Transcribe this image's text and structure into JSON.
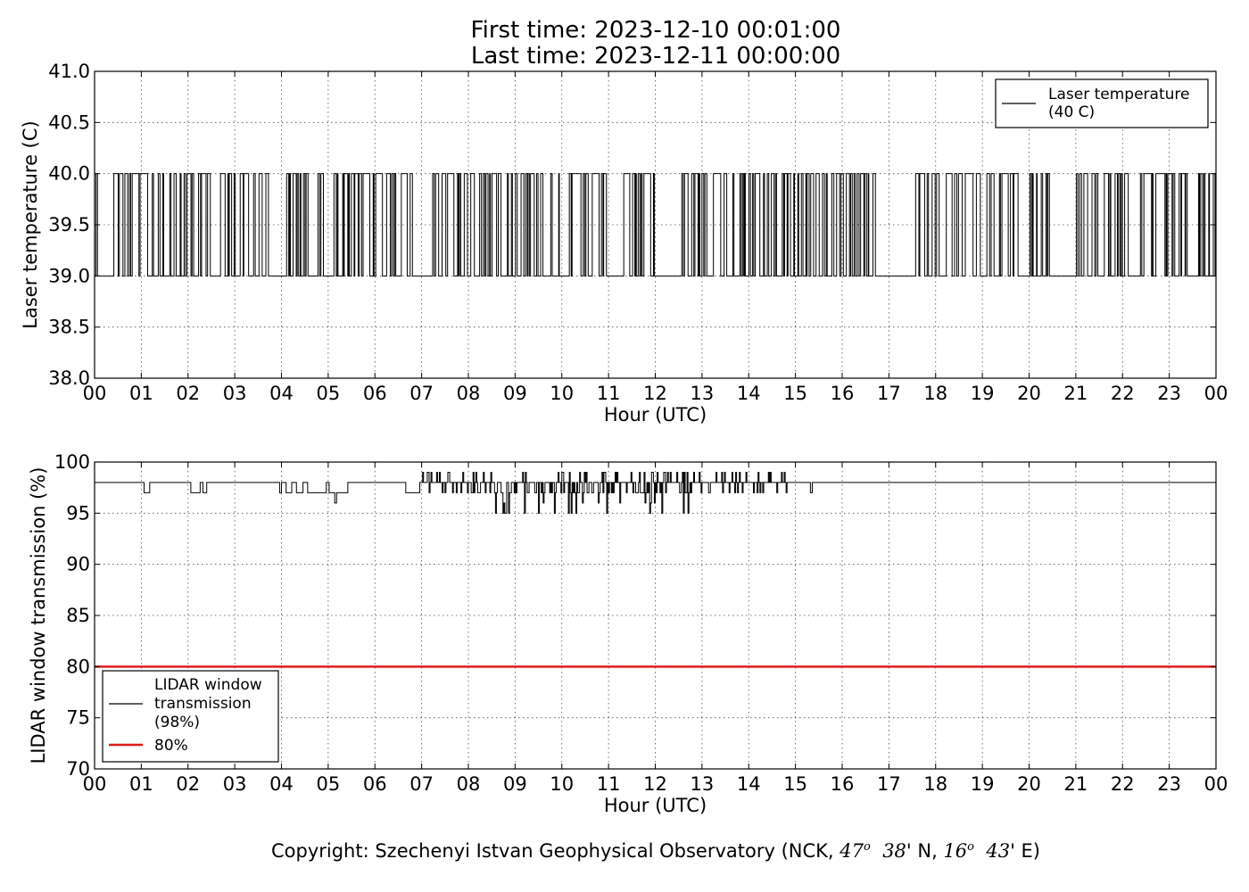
{
  "header": {
    "title_line1": "First time: 2023-12-10 00:01:00",
    "title_line2": "Last time: 2023-12-11 00:00:00"
  },
  "footer": {
    "copyright_prefix": "Copyright: Szechenyi Istvan Geophysical Observatory (NCK, ",
    "lat_deg": "47",
    "lat_deg_sup": "o",
    "lat_min": "38",
    "lat_suffix": "' N, ",
    "lon_deg": "16",
    "lon_deg_sup": "o",
    "lon_min": "43",
    "lon_suffix": "' E)"
  },
  "chart_data": [
    {
      "type": "line",
      "xlabel": "Hour (UTC)",
      "ylabel": "Laser temperature (C)",
      "xlim": [
        0,
        24
      ],
      "ylim": [
        38.0,
        41.0
      ],
      "xticks": [
        "00",
        "01",
        "02",
        "03",
        "04",
        "05",
        "06",
        "07",
        "08",
        "09",
        "10",
        "11",
        "12",
        "13",
        "14",
        "15",
        "16",
        "17",
        "18",
        "19",
        "20",
        "21",
        "22",
        "23",
        "00"
      ],
      "yticks": [
        "38.0",
        "38.5",
        "39.0",
        "39.5",
        "40.0",
        "40.5",
        "41.0"
      ],
      "grid": true,
      "legend_position": "top-right",
      "series": [
        {
          "name": "Laser temperature\n(40 C)",
          "color": "#000000",
          "values_note_levels": [
            39.0,
            40.0
          ],
          "active_spans_hours": [
            [
              0.0,
              0.12
            ],
            [
              0.35,
              1.55
            ],
            [
              1.6,
              2.45
            ],
            [
              2.65,
              3.7
            ],
            [
              3.95,
              4.0
            ],
            [
              4.1,
              4.55
            ],
            [
              4.75,
              6.9
            ],
            [
              7.2,
              11.0
            ],
            [
              11.3,
              12.05
            ],
            [
              12.5,
              13.5
            ],
            [
              13.65,
              15.5
            ],
            [
              15.55,
              16.65
            ],
            [
              16.65,
              16.8
            ],
            [
              17.55,
              18.1
            ],
            [
              18.2,
              18.95
            ],
            [
              19.05,
              19.75
            ],
            [
              20.0,
              20.5
            ],
            [
              20.95,
              21.5
            ],
            [
              21.55,
              22.1
            ],
            [
              22.35,
              23.45
            ],
            [
              23.6,
              24.0
            ]
          ]
        }
      ]
    },
    {
      "type": "line",
      "xlabel": "Hour (UTC)",
      "ylabel": "LIDAR window transmission (%)",
      "xlim": [
        0,
        24
      ],
      "ylim": [
        70,
        100
      ],
      "xticks": [
        "00",
        "01",
        "02",
        "03",
        "04",
        "05",
        "06",
        "07",
        "08",
        "09",
        "10",
        "11",
        "12",
        "13",
        "14",
        "15",
        "16",
        "17",
        "18",
        "19",
        "20",
        "21",
        "22",
        "23",
        "00"
      ],
      "yticks": [
        "70",
        "75",
        "80",
        "85",
        "90",
        "95",
        "100"
      ],
      "grid": true,
      "legend_position": "bottom-left",
      "series": [
        {
          "name": "LIDAR window\ntransmission\n(98%)",
          "color": "#000000",
          "baseline": 98,
          "dips": [
            [
              1.05,
              1.18,
              97
            ],
            [
              2.05,
              2.25,
              97
            ],
            [
              2.32,
              2.4,
              97
            ],
            [
              3.95,
              4.0,
              97
            ],
            [
              4.1,
              4.2,
              97
            ],
            [
              4.3,
              4.45,
              97
            ],
            [
              4.55,
              4.95,
              97
            ],
            [
              5.0,
              5.4,
              97
            ],
            [
              5.12,
              5.16,
              96
            ],
            [
              6.65,
              6.95,
              97
            ],
            [
              15.3,
              15.34,
              97
            ]
          ],
          "noisy_span": [
            7.0,
            14.8
          ],
          "noise_range": [
            95,
            99
          ]
        },
        {
          "name": "80%",
          "color": "#e31a1c",
          "constant": 80
        }
      ]
    }
  ]
}
